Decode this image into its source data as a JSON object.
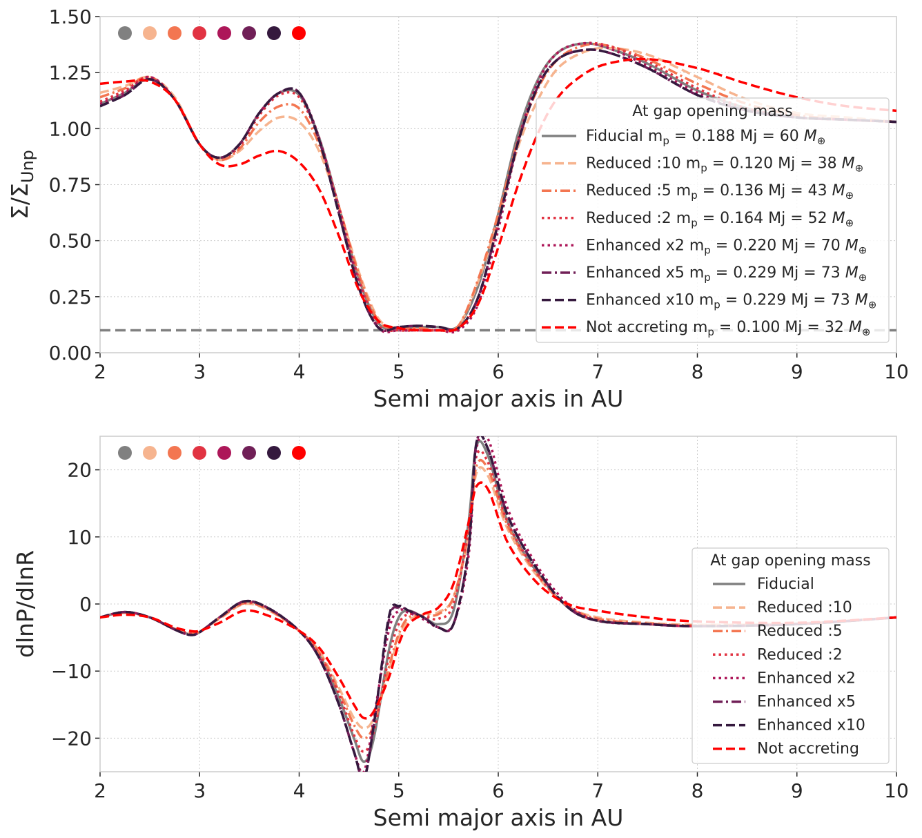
{
  "chart_data": [
    {
      "type": "line",
      "title": "",
      "xlabel": "Semi major axis in AU",
      "ylabel": "Σ/Σ_Unp",
      "ylabel_main": "Σ/Σ",
      "ylabel_sub": "Unp",
      "xlim": [
        2,
        10
      ],
      "ylim": [
        0,
        1.5
      ],
      "xticks": [
        "2",
        "3",
        "4",
        "5",
        "6",
        "7",
        "8",
        "9",
        "10"
      ],
      "yticks": [
        "0.00",
        "0.25",
        "0.50",
        "0.75",
        "1.00",
        "1.25",
        "1.50"
      ],
      "grid": true,
      "legend_placement": "center-right",
      "legend_title": "At gap opening mass",
      "reference_line": {
        "y": 0.1,
        "color": "#808080",
        "style": "dashed"
      },
      "x": [
        2,
        2.25,
        2.5,
        2.75,
        3,
        3.2,
        3.4,
        3.6,
        3.8,
        4,
        4.2,
        4.4,
        4.6,
        4.8,
        5,
        5.2,
        5.4,
        5.6,
        5.8,
        6,
        6.2,
        6.4,
        6.6,
        6.85,
        7.1,
        7.5,
        8,
        8.5,
        9,
        9.5,
        10
      ],
      "series": [
        {
          "name": "Fiducial",
          "mass_mj": "0.188",
          "mass_earth": "60",
          "color": "#808080",
          "style": "solid",
          "values": [
            1.11,
            1.16,
            1.22,
            1.13,
            0.93,
            0.87,
            0.93,
            1.07,
            1.16,
            1.15,
            0.96,
            0.65,
            0.33,
            0.13,
            0.11,
            0.115,
            0.115,
            0.12,
            0.3,
            0.62,
            0.98,
            1.22,
            1.34,
            1.38,
            1.36,
            1.29,
            1.17,
            1.09,
            1.05,
            1.04,
            1.03
          ]
        },
        {
          "name": "Reduced :10",
          "mass_mj": "0.120",
          "mass_earth": "38",
          "color": "#f6b48f",
          "style": "dashed",
          "values": [
            1.16,
            1.19,
            1.23,
            1.14,
            0.93,
            0.86,
            0.9,
            0.99,
            1.05,
            1.03,
            0.9,
            0.65,
            0.36,
            0.15,
            0.11,
            0.105,
            0.1,
            0.12,
            0.32,
            0.6,
            0.92,
            1.13,
            1.27,
            1.34,
            1.36,
            1.33,
            1.23,
            1.13,
            1.07,
            1.05,
            1.03
          ]
        },
        {
          "name": "Reduced :5",
          "mass_mj": "0.136",
          "mass_earth": "43",
          "color": "#f37651",
          "style": "dashdot",
          "values": [
            1.14,
            1.18,
            1.23,
            1.13,
            0.93,
            0.86,
            0.91,
            1.03,
            1.1,
            1.09,
            0.93,
            0.65,
            0.35,
            0.14,
            0.11,
            0.11,
            0.1,
            0.12,
            0.33,
            0.62,
            0.95,
            1.18,
            1.31,
            1.37,
            1.37,
            1.31,
            1.2,
            1.11,
            1.06,
            1.04,
            1.03
          ]
        },
        {
          "name": "Reduced :2",
          "mass_mj": "0.164",
          "mass_earth": "52",
          "color": "#e13342",
          "style": "dotted",
          "values": [
            1.12,
            1.17,
            1.23,
            1.13,
            0.93,
            0.87,
            0.92,
            1.06,
            1.15,
            1.14,
            0.95,
            0.65,
            0.33,
            0.12,
            0.1,
            0.1,
            0.1,
            0.11,
            0.25,
            0.58,
            0.95,
            1.21,
            1.34,
            1.38,
            1.37,
            1.3,
            1.18,
            1.09,
            1.05,
            1.04,
            1.03
          ]
        },
        {
          "name": "Enhanced x2",
          "mass_mj": "0.220",
          "mass_earth": "70",
          "color": "#ad1759",
          "style": "dotted",
          "values": [
            1.11,
            1.16,
            1.23,
            1.13,
            0.93,
            0.87,
            0.93,
            1.07,
            1.16,
            1.16,
            0.96,
            0.64,
            0.31,
            0.11,
            0.1,
            0.1,
            0.1,
            0.1,
            0.22,
            0.55,
            0.94,
            1.21,
            1.34,
            1.38,
            1.36,
            1.28,
            1.16,
            1.08,
            1.05,
            1.04,
            1.03
          ]
        },
        {
          "name": "Enhanced x5",
          "mass_mj": "0.229",
          "mass_earth": "73",
          "color": "#701f57",
          "style": "dashdot",
          "values": [
            1.1,
            1.15,
            1.22,
            1.13,
            0.93,
            0.87,
            0.93,
            1.07,
            1.16,
            1.16,
            0.95,
            0.62,
            0.29,
            0.11,
            0.115,
            0.12,
            0.115,
            0.11,
            0.25,
            0.58,
            0.94,
            1.19,
            1.31,
            1.35,
            1.34,
            1.27,
            1.15,
            1.08,
            1.05,
            1.04,
            1.03
          ]
        },
        {
          "name": "Enhanced x10",
          "mass_mj": "0.229",
          "mass_earth": "73",
          "color": "#35193e",
          "style": "dashed",
          "values": [
            1.1,
            1.15,
            1.22,
            1.13,
            0.93,
            0.87,
            0.93,
            1.07,
            1.16,
            1.16,
            0.95,
            0.62,
            0.29,
            0.11,
            0.115,
            0.12,
            0.115,
            0.11,
            0.25,
            0.58,
            0.94,
            1.19,
            1.31,
            1.35,
            1.34,
            1.27,
            1.15,
            1.08,
            1.05,
            1.04,
            1.03
          ]
        },
        {
          "name": "Not accreting",
          "mass_mj": "0.100",
          "mass_earth": "32",
          "color": "#ff0000",
          "style": "dashed",
          "values": [
            1.2,
            1.21,
            1.21,
            1.13,
            0.93,
            0.84,
            0.84,
            0.88,
            0.9,
            0.85,
            0.73,
            0.52,
            0.28,
            0.14,
            0.11,
            0.1,
            0.1,
            0.11,
            0.22,
            0.47,
            0.75,
            0.98,
            1.14,
            1.24,
            1.29,
            1.31,
            1.27,
            1.2,
            1.14,
            1.1,
            1.08
          ]
        }
      ]
    },
    {
      "type": "line",
      "title": "",
      "xlabel": "Semi major axis in AU",
      "ylabel": "dlnP/dlnR",
      "xlim": [
        2,
        10
      ],
      "ylim": [
        -25,
        25
      ],
      "xticks": [
        "2",
        "3",
        "4",
        "5",
        "6",
        "7",
        "8",
        "9",
        "10"
      ],
      "yticks": [
        "−20",
        "−10",
        "0",
        "10",
        "20"
      ],
      "ytick_values": [
        -20,
        -10,
        0,
        10,
        20
      ],
      "grid": true,
      "legend_placement": "center-right",
      "legend_title": "At gap opening mass",
      "x": [
        2,
        2.25,
        2.5,
        2.75,
        2.9,
        3,
        3.2,
        3.45,
        3.7,
        4,
        4.2,
        4.4,
        4.55,
        4.65,
        4.75,
        4.9,
        5.0,
        5.1,
        5.25,
        5.4,
        5.55,
        5.7,
        5.78,
        5.9,
        6.1,
        6.4,
        6.7,
        7,
        7.5,
        8,
        9,
        10
      ],
      "series": [
        {
          "name": "Fiducial",
          "color": "#808080",
          "style": "solid",
          "values": [
            -2,
            -1.2,
            -2,
            -3.8,
            -4.5,
            -4.2,
            -2,
            0.3,
            -0.8,
            -4,
            -7.5,
            -14,
            -20,
            -23.5,
            -20,
            -7,
            -2,
            -1,
            -2,
            -3,
            -1,
            12,
            23.5,
            22,
            12,
            4.5,
            -0.5,
            -2.5,
            -3,
            -3.3,
            -3,
            -2
          ]
        },
        {
          "name": "Reduced :10",
          "color": "#f6b48f",
          "style": "dashed",
          "values": [
            -2,
            -1.3,
            -2,
            -3.7,
            -4.3,
            -4.1,
            -2.2,
            0,
            -1,
            -4,
            -7,
            -12.5,
            -17,
            -18.5,
            -17,
            -10,
            -5,
            -2.5,
            -1.5,
            -1.2,
            1,
            10,
            19.5,
            19,
            11,
            4,
            -0.3,
            -2,
            -2.8,
            -3.1,
            -2.9,
            -2
          ]
        },
        {
          "name": "Reduced :5",
          "color": "#f37651",
          "style": "dashdot",
          "values": [
            -2,
            -1.3,
            -2,
            -3.7,
            -4.3,
            -4.1,
            -2.1,
            0.1,
            -0.9,
            -4,
            -7.2,
            -13,
            -18,
            -20,
            -18,
            -9.5,
            -4.5,
            -2,
            -1.7,
            -1.5,
            1,
            10.5,
            20.5,
            20,
            11.5,
            4.2,
            -0.3,
            -2.2,
            -2.9,
            -3.2,
            -3,
            -2
          ]
        },
        {
          "name": "Reduced :2",
          "color": "#e13342",
          "style": "dotted",
          "values": [
            -2,
            -1.2,
            -2,
            -3.8,
            -4.4,
            -4.2,
            -2,
            0.2,
            -0.8,
            -4,
            -7.4,
            -13.5,
            -19.5,
            -22,
            -19,
            -8,
            -3,
            -1.5,
            -1.8,
            -2.2,
            0,
            11,
            22,
            21,
            12,
            4.4,
            -0.4,
            -2.4,
            -3,
            -3.3,
            -3,
            -2
          ]
        },
        {
          "name": "Enhanced x2",
          "color": "#ad1759",
          "style": "dotted",
          "values": [
            -2,
            -1.2,
            -2,
            -3.8,
            -4.6,
            -4.2,
            -2,
            0.4,
            -0.7,
            -4,
            -8,
            -15,
            -22,
            -25,
            -17,
            -4,
            -1,
            -1.3,
            -2.3,
            -3.5,
            -3,
            7,
            23,
            24.5,
            14,
            5.5,
            0,
            -2.5,
            -3,
            -3.3,
            -3,
            -2
          ]
        },
        {
          "name": "Enhanced x5",
          "color": "#701f57",
          "style": "dashdot",
          "values": [
            -2,
            -1.2,
            -2,
            -3.8,
            -4.6,
            -4.2,
            -2,
            0.4,
            -0.7,
            -4,
            -8,
            -15,
            -22,
            -26,
            -18,
            -2.5,
            -0.5,
            -1,
            -2,
            -3.5,
            -3,
            8,
            24,
            23,
            13,
            5,
            -0.5,
            -2.5,
            -3,
            -3.3,
            -3,
            -2
          ]
        },
        {
          "name": "Enhanced x10",
          "color": "#35193e",
          "style": "dashed",
          "values": [
            -2,
            -1.2,
            -2,
            -3.8,
            -4.6,
            -4.2,
            -2,
            0.4,
            -0.7,
            -4,
            -8,
            -15,
            -22,
            -26,
            -18,
            -2,
            -0.3,
            -1,
            -2,
            -3.5,
            -3,
            8,
            24,
            23,
            13,
            5,
            -0.5,
            -2.5,
            -3,
            -3.3,
            -3,
            -2
          ]
        },
        {
          "name": "Not accreting",
          "color": "#ff0000",
          "style": "dashed",
          "values": [
            -2,
            -1.6,
            -2,
            -3.5,
            -4,
            -4.0,
            -2.8,
            -1.0,
            -1.8,
            -4,
            -6.5,
            -11,
            -15,
            -17,
            -16,
            -11,
            -6,
            -3,
            -1.5,
            -0.5,
            3,
            12,
            17.5,
            17,
            9,
            3,
            0,
            -1,
            -2,
            -2.6,
            -2.8,
            -2
          ]
        }
      ]
    }
  ],
  "legend_text": {
    "mp": "m",
    "mp_sub": "p",
    "mj_unit": "Mj",
    "earth_symbol": "M",
    "earth_sub": "⊕",
    "equals": "="
  }
}
